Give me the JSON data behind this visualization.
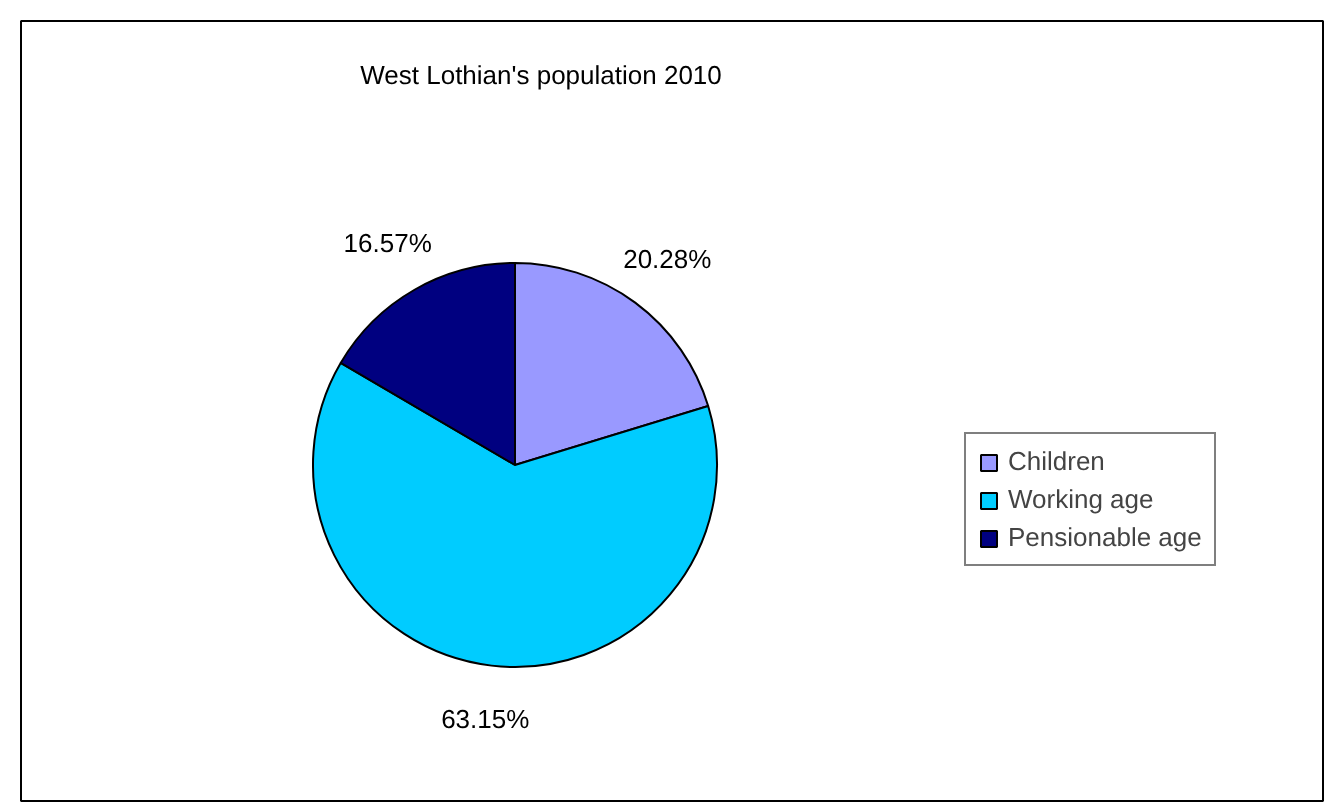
{
  "chart_data": {
    "type": "pie",
    "title": "West Lothian's population 2010",
    "categories": [
      "Children",
      "Working age",
      "Pensionable age"
    ],
    "values": [
      20.28,
      63.15,
      16.57
    ],
    "colors": [
      "#9999ff",
      "#00ccff",
      "#000080"
    ],
    "value_labels": [
      "20.28%",
      "63.15%",
      "16.57%"
    ],
    "legend": "right"
  }
}
